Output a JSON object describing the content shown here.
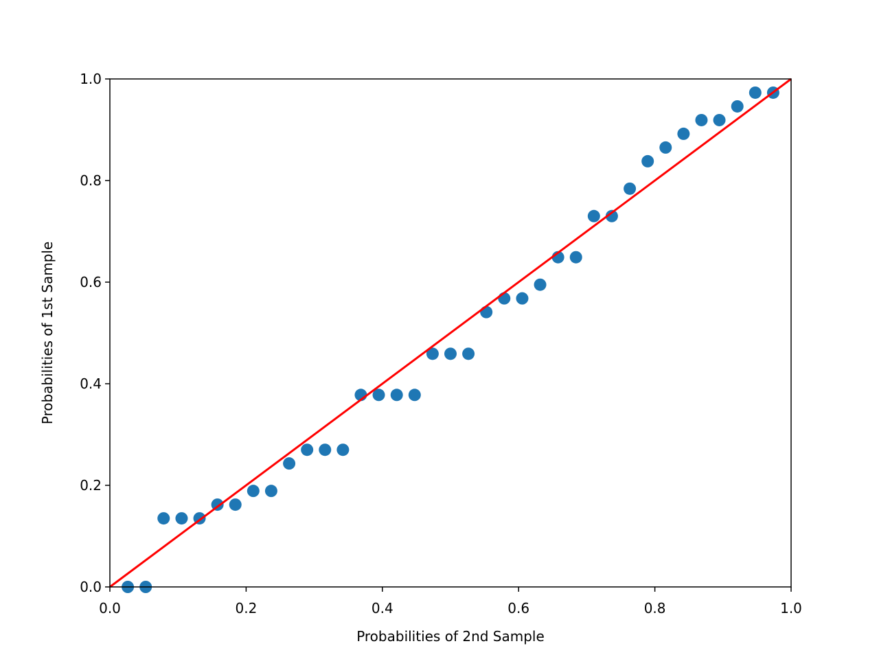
{
  "chart_data": {
    "type": "scatter",
    "xlabel": "Probabilities of 2nd Sample",
    "ylabel": "Probabilities of 1st Sample",
    "x": [
      0.0263,
      0.0526,
      0.0789,
      0.1053,
      0.1316,
      0.1579,
      0.1842,
      0.2105,
      0.2368,
      0.2632,
      0.2895,
      0.3158,
      0.3421,
      0.3684,
      0.3947,
      0.4211,
      0.4474,
      0.4737,
      0.5,
      0.5263,
      0.5526,
      0.5789,
      0.6053,
      0.6316,
      0.6579,
      0.6842,
      0.7105,
      0.7368,
      0.7632,
      0.7895,
      0.8158,
      0.8421,
      0.8684,
      0.8947,
      0.9211,
      0.9474,
      0.9737
    ],
    "values": [
      0,
      0,
      0.135,
      0.135,
      0.135,
      0.162,
      0.162,
      0.189,
      0.189,
      0.243,
      0.27,
      0.27,
      0.27,
      0.378,
      0.378,
      0.378,
      0.378,
      0.459,
      0.459,
      0.459,
      0.541,
      0.568,
      0.568,
      0.595,
      0.649,
      0.649,
      0.73,
      0.73,
      0.784,
      0.838,
      0.865,
      0.892,
      0.919,
      0.919,
      0.946,
      0.973,
      0.973
    ],
    "color": "#1f77b4",
    "reference_line": {
      "x": [
        0,
        1
      ],
      "y": [
        0,
        1
      ],
      "color": "#ff0000"
    },
    "xlim": [
      0,
      1
    ],
    "ylim": [
      0,
      1
    ],
    "xticks": [
      {
        "value": 0,
        "label": "0.0"
      },
      0.2,
      0.4,
      0.6,
      0.8,
      {
        "value": 1,
        "label": "1.0"
      }
    ],
    "yticks": [
      {
        "value": 0,
        "label": "0.0"
      },
      0.2,
      0.4,
      0.6,
      0.8,
      {
        "value": 1,
        "label": "1.0"
      }
    ],
    "grid": false
  }
}
